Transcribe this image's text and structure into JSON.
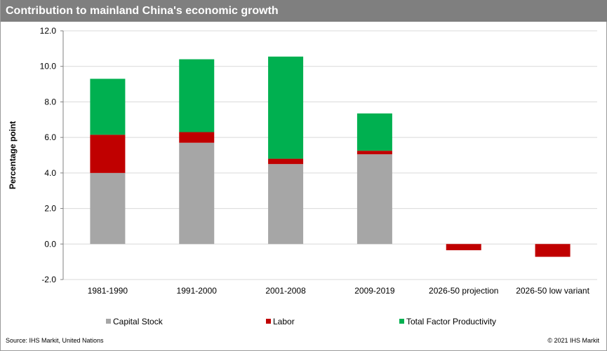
{
  "header": {
    "title": "Contribution to mainland China's economic growth"
  },
  "footer": {
    "source": "Source: IHS Markit, United Nations",
    "copyright": "© 2021 IHS Markit"
  },
  "colors": {
    "capital": "#a6a6a6",
    "labor": "#c00000",
    "tfp": "#00b050",
    "title_bg": "#7f7f7f"
  },
  "chart_data": {
    "type": "bar",
    "stacked": true,
    "title": "Contribution to mainland China's economic growth",
    "xlabel": "",
    "ylabel": "Percentage point",
    "ylim": [
      -2.0,
      12.0
    ],
    "yticks": [
      "12.0",
      "10.0",
      "8.0",
      "6.0",
      "4.0",
      "2.0",
      "0.0",
      "-2.0"
    ],
    "categories": [
      "1981-1990",
      "1991-2000",
      "2001-2008",
      "2009-2019",
      "2026-50 projection",
      "2026-50 low variant"
    ],
    "series": [
      {
        "name": "Capital Stock",
        "color_key": "capital",
        "values": [
          4.0,
          5.7,
          4.5,
          5.05,
          0,
          0
        ]
      },
      {
        "name": "Labor",
        "color_key": "labor",
        "values": [
          2.15,
          0.6,
          0.3,
          0.2,
          -0.35,
          -0.72
        ]
      },
      {
        "name": "Total Factor Productivity",
        "color_key": "tfp",
        "values": [
          3.15,
          4.1,
          5.75,
          2.1,
          0,
          0
        ]
      }
    ],
    "legend": "bottom"
  }
}
